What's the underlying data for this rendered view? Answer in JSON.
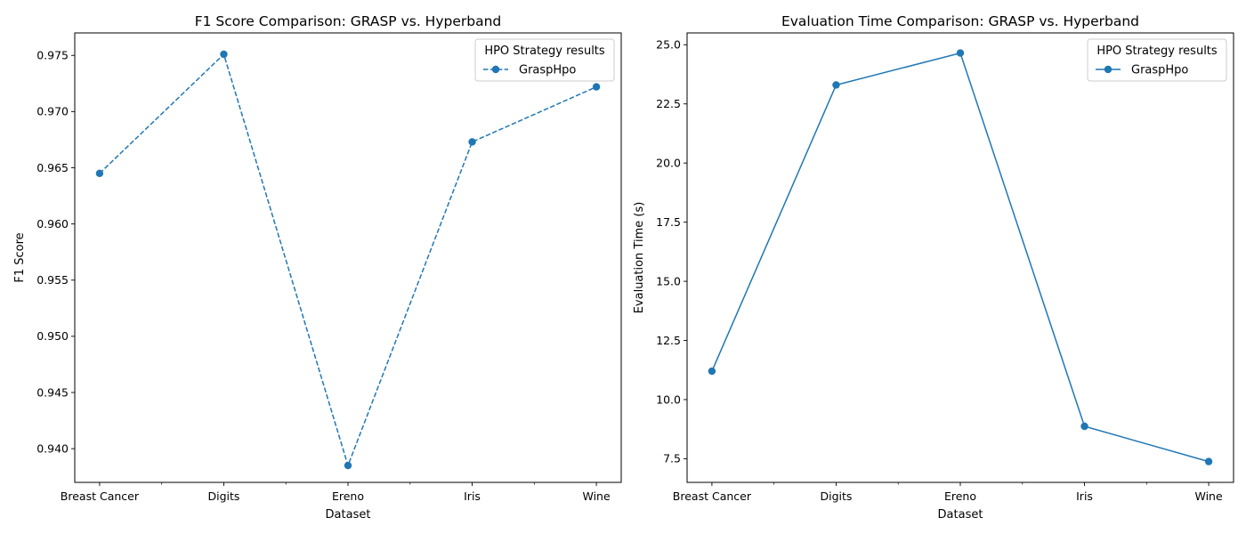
{
  "chart_data": [
    {
      "type": "line",
      "title": "F1 Score Comparison: GRASP vs. Hyperband",
      "xlabel": "Dataset",
      "ylabel": "F1 Score",
      "categories": [
        "Breast Cancer",
        "Digits",
        "Ereno",
        "Iris",
        "Wine"
      ],
      "series": [
        {
          "name": "GraspHpo",
          "values": [
            0.9645,
            0.9751,
            0.9385,
            0.9673,
            0.9722
          ],
          "linestyle": "dashed",
          "marker": "circle",
          "color": "#1f77b4"
        }
      ],
      "ylim": [
        0.937,
        0.977
      ],
      "yticks": [
        0.94,
        0.945,
        0.95,
        0.955,
        0.96,
        0.965,
        0.97,
        0.975
      ],
      "ytick_labels": [
        "0.940",
        "0.945",
        "0.950",
        "0.955",
        "0.960",
        "0.965",
        "0.970",
        "0.975"
      ],
      "legend": {
        "title": "HPO Strategy results",
        "placement": "upper right"
      },
      "grid": false
    },
    {
      "type": "line",
      "title": "Evaluation Time Comparison: GRASP vs. Hyperband",
      "xlabel": "Dataset",
      "ylabel": "Evaluation Time (s)",
      "categories": [
        "Breast Cancer",
        "Digits",
        "Ereno",
        "Iris",
        "Wine"
      ],
      "series": [
        {
          "name": "GraspHpo",
          "values": [
            11.2,
            23.3,
            24.65,
            8.87,
            7.38
          ],
          "linestyle": "solid",
          "marker": "circle",
          "color": "#1f77b4"
        }
      ],
      "ylim": [
        6.5,
        25.5
      ],
      "yticks": [
        7.5,
        10.0,
        12.5,
        15.0,
        17.5,
        20.0,
        22.5,
        25.0
      ],
      "ytick_labels": [
        "7.5",
        "10.0",
        "12.5",
        "15.0",
        "17.5",
        "20.0",
        "22.5",
        "25.0"
      ],
      "legend": {
        "title": "HPO Strategy results",
        "placement": "upper right"
      },
      "grid": false
    }
  ]
}
